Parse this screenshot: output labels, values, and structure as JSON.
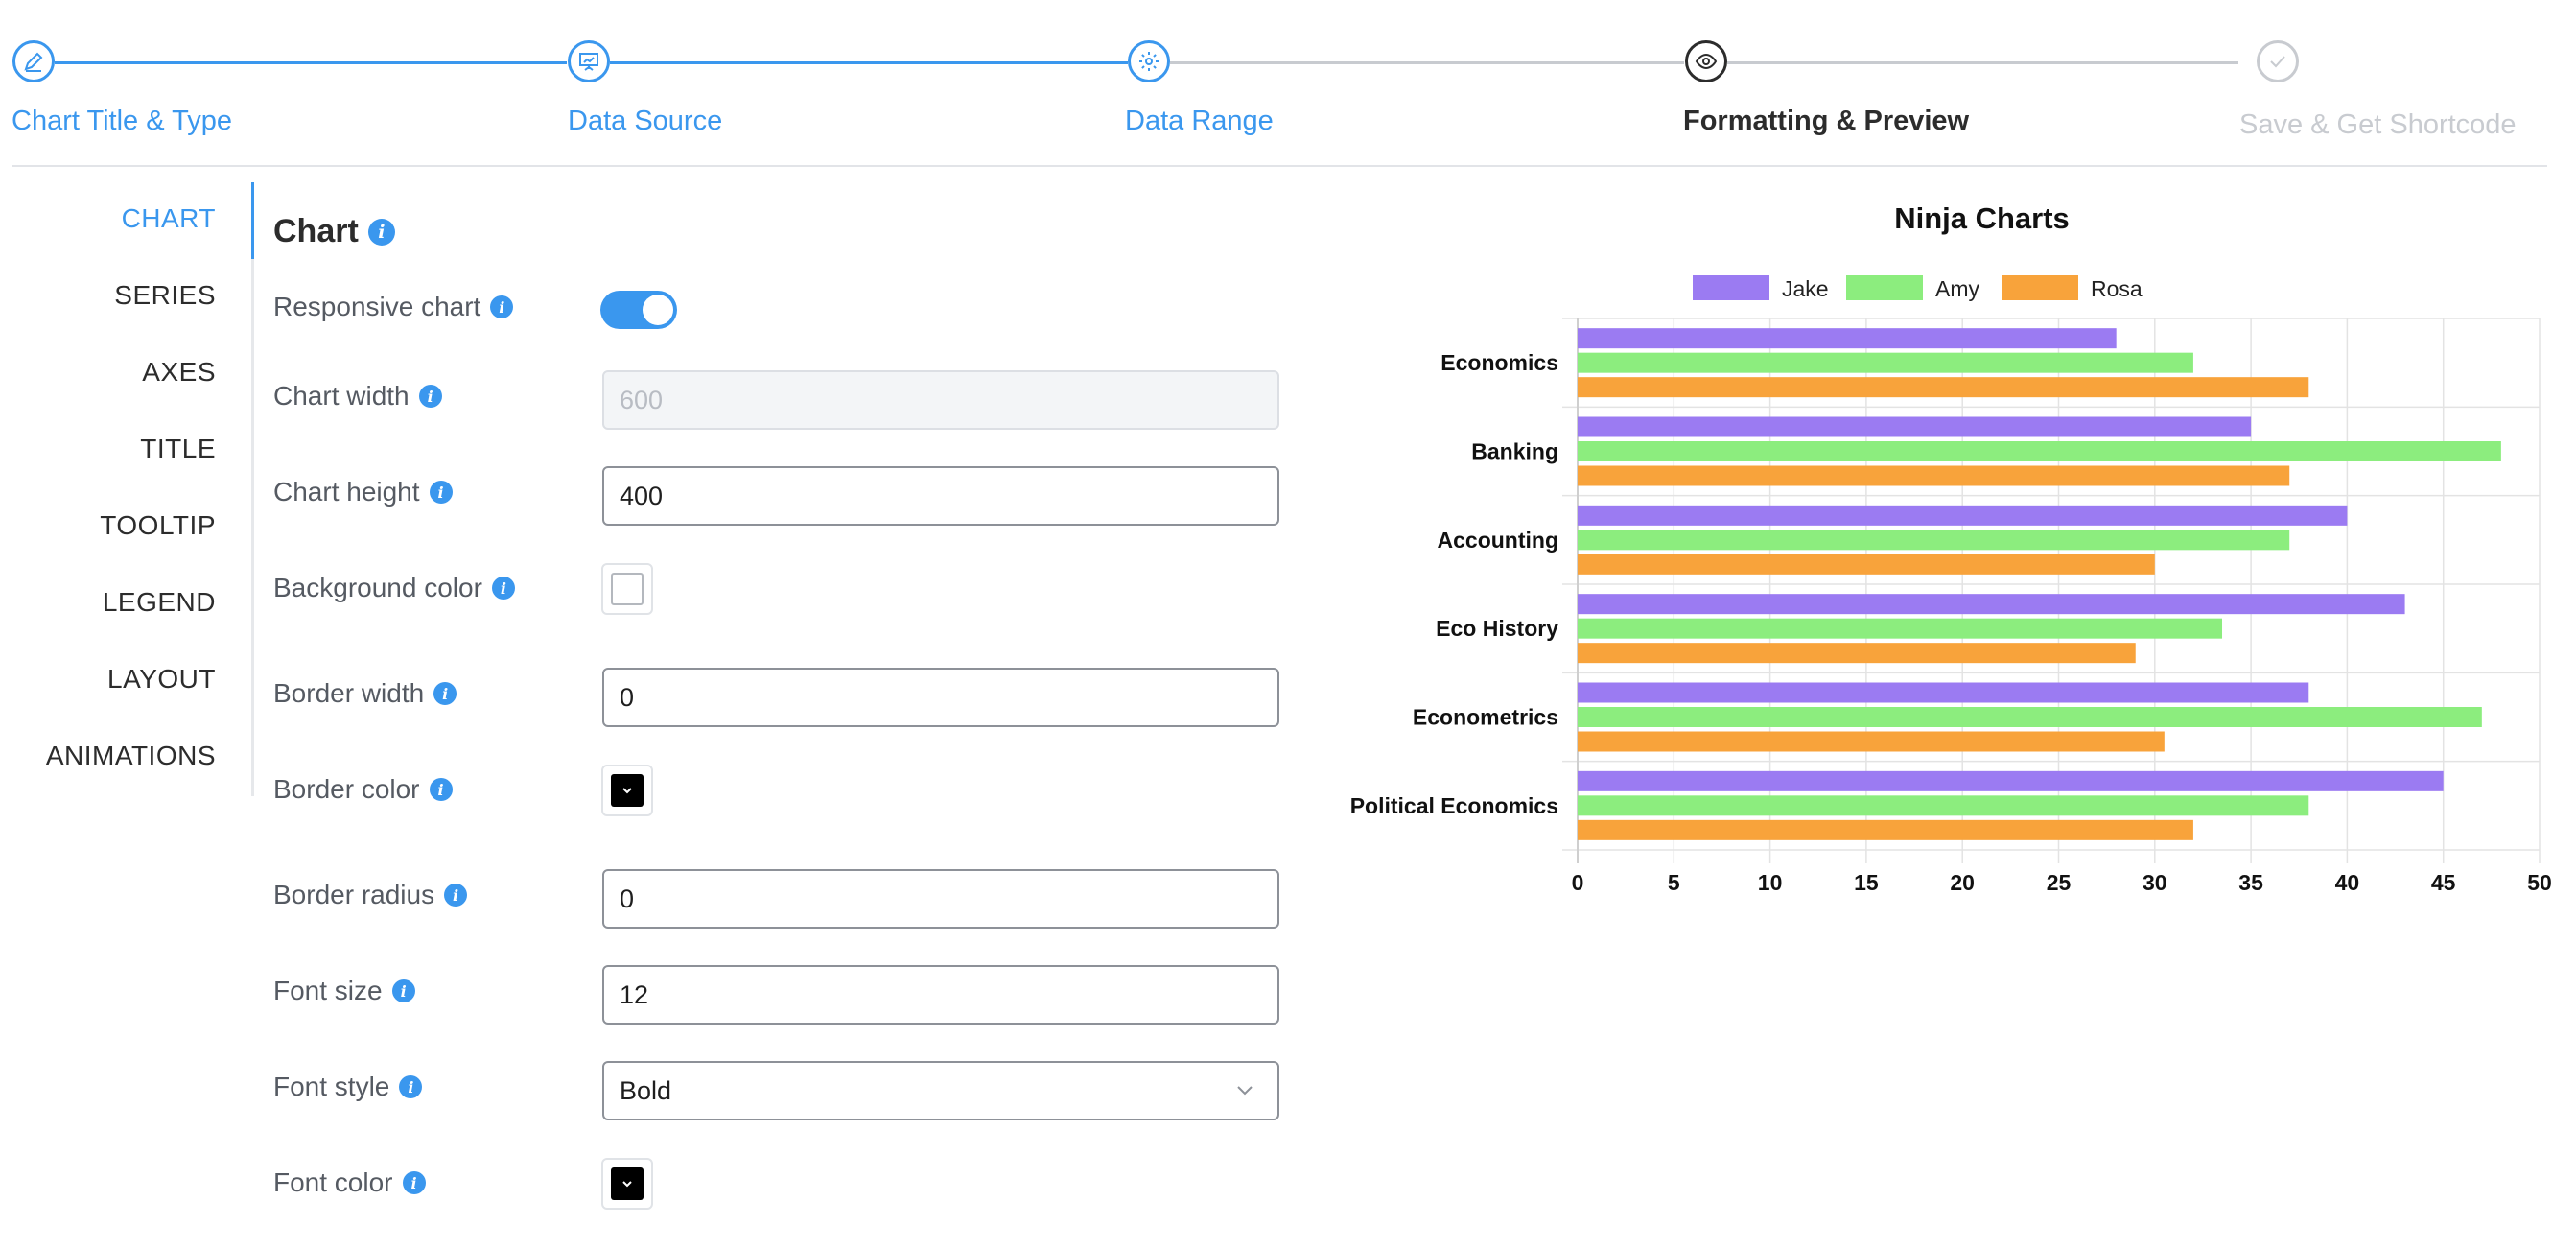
{
  "stepper": {
    "steps": [
      {
        "label": "Chart Title & Type",
        "state": "done",
        "icon": "pencil-icon"
      },
      {
        "label": "Data Source",
        "state": "done",
        "icon": "presentation-icon"
      },
      {
        "label": "Data Range",
        "state": "done",
        "icon": "gear-icon"
      },
      {
        "label": "Formatting & Preview",
        "state": "active",
        "icon": "eye-icon"
      },
      {
        "label": "Save & Get Shortcode",
        "state": "disabled",
        "icon": "check-icon"
      }
    ]
  },
  "sidebar": {
    "items": [
      {
        "label": "CHART",
        "active": true
      },
      {
        "label": "SERIES"
      },
      {
        "label": "AXES"
      },
      {
        "label": "TITLE"
      },
      {
        "label": "TOOLTIP"
      },
      {
        "label": "LEGEND"
      },
      {
        "label": "LAYOUT"
      },
      {
        "label": "ANIMATIONS"
      }
    ]
  },
  "form": {
    "title": "Chart",
    "responsive_label": "Responsive chart",
    "responsive_on": true,
    "width_label": "Chart width",
    "width_placeholder": "600",
    "height_label": "Chart height",
    "height_value": "400",
    "bg_color_label": "Background color",
    "bg_color": "#ffffff",
    "border_width_label": "Border width",
    "border_width_value": "0",
    "border_color_label": "Border color",
    "border_color": "#000000",
    "border_radius_label": "Border radius",
    "border_radius_value": "0",
    "font_size_label": "Font size",
    "font_size_value": "12",
    "font_style_label": "Font style",
    "font_style_value": "Bold",
    "font_color_label": "Font color",
    "font_color": "#000000"
  },
  "colors": {
    "accent": "#3a97ee",
    "jake": "#9b7bf2",
    "amy": "#8ced7e",
    "rosa": "#f8a33b"
  },
  "chart_data": {
    "type": "bar",
    "orientation": "horizontal",
    "title": "Ninja Charts",
    "categories": [
      "Economics",
      "Banking",
      "Accounting",
      "Eco History",
      "Econometrics",
      "Political Economics"
    ],
    "series": [
      {
        "name": "Jake",
        "color": "#9b7bf2",
        "values": [
          28,
          35,
          40,
          43,
          38,
          45
        ]
      },
      {
        "name": "Amy",
        "color": "#8ced7e",
        "values": [
          32,
          48,
          37,
          33.5,
          47,
          38
        ]
      },
      {
        "name": "Rosa",
        "color": "#f8a33b",
        "values": [
          38,
          37,
          30,
          29,
          30.5,
          32
        ]
      }
    ],
    "xlim": [
      0,
      50
    ],
    "x_ticks": [
      "0",
      "5",
      "10",
      "15",
      "20",
      "25",
      "30",
      "35",
      "40",
      "45",
      "50"
    ],
    "grid": true,
    "legend_position": "top"
  }
}
